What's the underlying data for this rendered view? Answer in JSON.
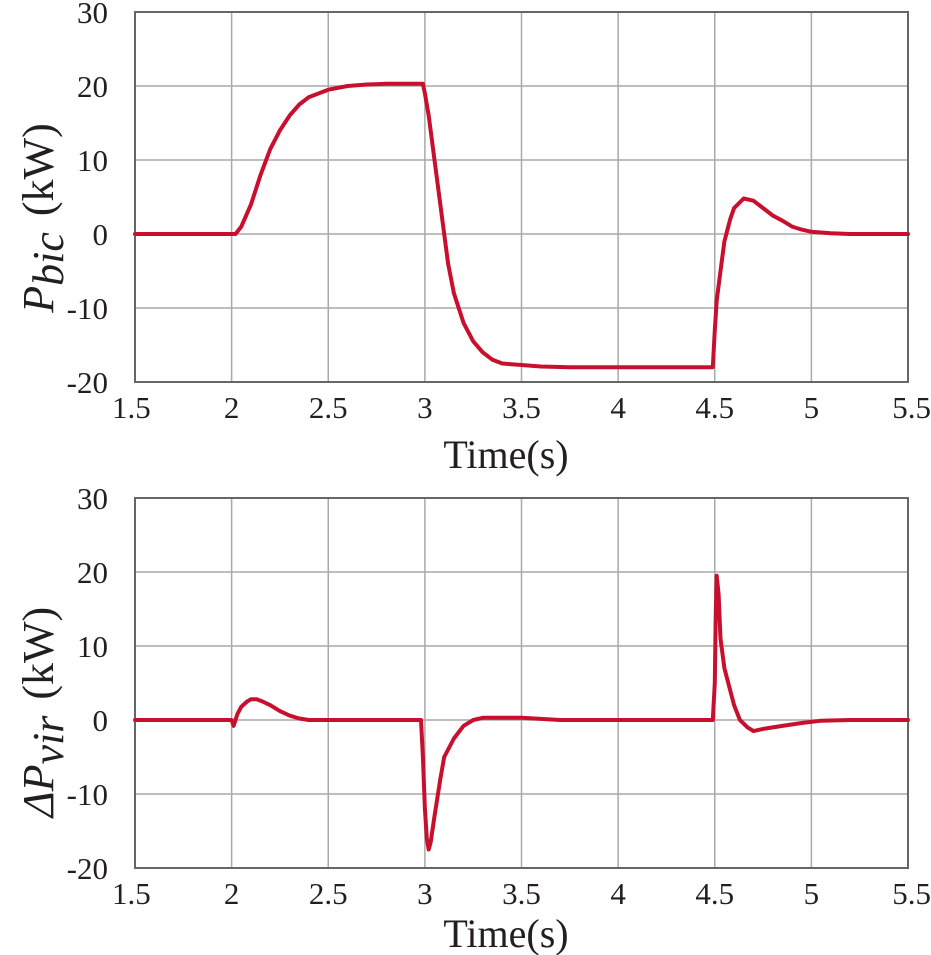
{
  "colors": {
    "series": "#c8102e"
  },
  "chart_data": [
    {
      "type": "line",
      "title": "",
      "xlabel": "Time(s)",
      "ylabel_main": "P",
      "ylabel_sub": "bic",
      "ylabel_unit": "(kW)",
      "xlim": [
        1.5,
        5.5
      ],
      "ylim": [
        -20,
        30
      ],
      "xticks": [
        1.5,
        2,
        2.5,
        3,
        3.5,
        4,
        4.5,
        5,
        5.5
      ],
      "xtick_labels": [
        "1.5",
        "2",
        "2.5",
        "3",
        "3.5",
        "4",
        "4.5",
        "5",
        "5.5"
      ],
      "yticks": [
        -20,
        -10,
        0,
        10,
        20,
        30
      ],
      "ytick_labels": [
        "-20",
        "-10",
        "0",
        "10",
        "20",
        "30"
      ],
      "grid": true,
      "series": [
        {
          "name": "P_bic",
          "x": [
            1.5,
            2.02,
            2.05,
            2.1,
            2.15,
            2.2,
            2.25,
            2.3,
            2.35,
            2.4,
            2.5,
            2.6,
            2.7,
            2.8,
            2.98,
            2.99,
            3.0,
            3.02,
            3.05,
            3.08,
            3.1,
            3.12,
            3.15,
            3.2,
            3.25,
            3.3,
            3.35,
            3.4,
            3.5,
            3.6,
            3.75,
            4.0,
            4.25,
            4.49,
            4.5,
            4.51,
            4.53,
            4.55,
            4.58,
            4.6,
            4.65,
            4.7,
            4.75,
            4.8,
            4.85,
            4.9,
            4.95,
            5.0,
            5.1,
            5.2,
            5.3,
            5.5
          ],
          "y": [
            0,
            0,
            1,
            4,
            8,
            11.5,
            14,
            16,
            17.5,
            18.5,
            19.5,
            20,
            20.2,
            20.3,
            20.3,
            20.3,
            19,
            16,
            10,
            4,
            0,
            -4,
            -8,
            -12,
            -14.5,
            -16,
            -17,
            -17.5,
            -17.7,
            -17.9,
            -18,
            -18,
            -18,
            -18,
            -13,
            -9,
            -5,
            -1,
            2,
            3.5,
            4.8,
            4.5,
            3.5,
            2.5,
            1.8,
            1,
            0.6,
            0.3,
            0.1,
            0,
            0,
            0
          ]
        }
      ]
    },
    {
      "type": "line",
      "title": "",
      "xlabel": "Time(s)",
      "ylabel_main": "ΔP",
      "ylabel_sub": "vir",
      "ylabel_unit": "(kW)",
      "xlim": [
        1.5,
        5.5
      ],
      "ylim": [
        -20,
        30
      ],
      "xticks": [
        1.5,
        2,
        2.5,
        3,
        3.5,
        4,
        4.5,
        5,
        5.5
      ],
      "xtick_labels": [
        "1.5",
        "2",
        "2.5",
        "3",
        "3.5",
        "4",
        "4.5",
        "5",
        "5.5"
      ],
      "yticks": [
        -20,
        -10,
        0,
        10,
        20,
        30
      ],
      "ytick_labels": [
        "-20",
        "-10",
        "0",
        "10",
        "20",
        "30"
      ],
      "grid": true,
      "series": [
        {
          "name": "ΔP_vir",
          "x": [
            1.5,
            2.0,
            2.01,
            2.02,
            2.03,
            2.05,
            2.08,
            2.1,
            2.13,
            2.16,
            2.2,
            2.25,
            2.3,
            2.35,
            2.4,
            2.5,
            2.98,
            2.99,
            3.0,
            3.01,
            3.02,
            3.03,
            3.05,
            3.08,
            3.1,
            3.15,
            3.2,
            3.25,
            3.3,
            3.5,
            3.7,
            4.49,
            4.5,
            4.505,
            4.51,
            4.52,
            4.53,
            4.55,
            4.58,
            4.6,
            4.63,
            4.67,
            4.7,
            4.75,
            4.85,
            4.95,
            5.05,
            5.2,
            5.5
          ],
          "y": [
            0,
            0,
            -0.8,
            0,
            0.8,
            1.8,
            2.5,
            2.8,
            2.8,
            2.5,
            2,
            1.2,
            0.6,
            0.2,
            0,
            0,
            0,
            -5,
            -12,
            -16,
            -17.5,
            -16.5,
            -13,
            -8,
            -5,
            -2.5,
            -0.8,
            0,
            0.3,
            0.3,
            0,
            0,
            5,
            14,
            19.5,
            17,
            11,
            7,
            4,
            2,
            0,
            -1,
            -1.5,
            -1.2,
            -0.8,
            -0.4,
            -0.1,
            0,
            0
          ]
        }
      ]
    }
  ]
}
